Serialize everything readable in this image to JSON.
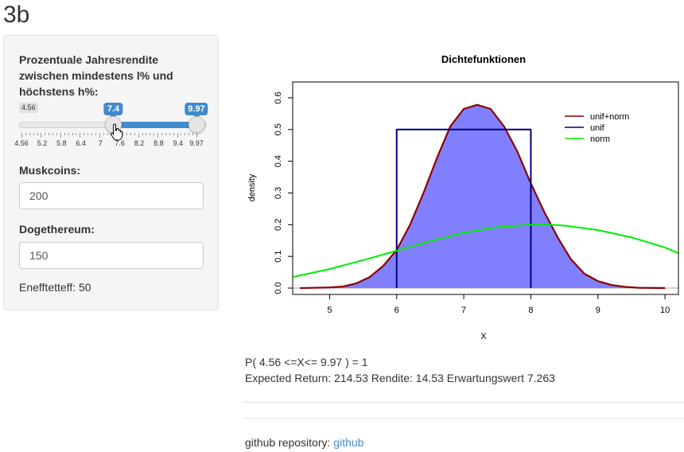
{
  "app": {
    "title": "3b"
  },
  "sidebar": {
    "slider": {
      "label": "Prozentuale Jahresrendite zwischen mindestens l% und höchstens h%:",
      "min": 4.56,
      "max": 9.97,
      "from": 7.4,
      "to": 9.97,
      "min_label": "4.56",
      "from_label": "7.4",
      "to_label": "9.97",
      "ticks": [
        "4.56",
        "5.2",
        "5.8",
        "6.4",
        "7",
        "7.6",
        "8.2",
        "8.8",
        "9.4",
        "9.97"
      ],
      "cursor": "hand-pointer-icon"
    },
    "muskcoins": {
      "label": "Muskcoins:",
      "value": "200"
    },
    "dogethereum": {
      "label": "Dogethereum:",
      "value": "150"
    },
    "output": "Enefftetteff: 50"
  },
  "main": {
    "probability": "P( 4.56 <=X<= 9.97 ) = 1",
    "expected": "Expected Return: 214.53 Rendite: 14.53 Erwartungswert 7.263",
    "github_prefix": "github repository:",
    "github_link": "github"
  },
  "chart_data": {
    "type": "line",
    "title": "Dichtefunktionen",
    "xlabel": "X",
    "ylabel": "density",
    "xlim": [
      4.45,
      10.2
    ],
    "ylim": [
      -0.02,
      0.65
    ],
    "xticks": [
      5,
      6,
      7,
      8,
      9,
      10
    ],
    "yticks": [
      0.0,
      0.1,
      0.2,
      0.3,
      0.4,
      0.5,
      0.6
    ],
    "legend": {
      "position": "top-right",
      "entries": [
        "unif+norm",
        "unif",
        "norm"
      ]
    },
    "series": [
      {
        "name": "unif+norm",
        "color": "#8b0000",
        "fill": "#8080ff",
        "x": [
          4.56,
          5.0,
          5.2,
          5.4,
          5.6,
          5.8,
          6.0,
          6.2,
          6.4,
          6.6,
          6.8,
          7.0,
          7.2,
          7.4,
          7.6,
          7.8,
          8.0,
          8.2,
          8.4,
          8.6,
          8.8,
          9.0,
          9.2,
          9.4,
          9.6,
          10.0
        ],
        "y": [
          0.0,
          0.002,
          0.005,
          0.015,
          0.035,
          0.07,
          0.12,
          0.2,
          0.3,
          0.41,
          0.51,
          0.565,
          0.578,
          0.565,
          0.51,
          0.43,
          0.33,
          0.24,
          0.16,
          0.09,
          0.045,
          0.022,
          0.01,
          0.004,
          0.001,
          0.0
        ]
      },
      {
        "name": "unif",
        "color": "#000080",
        "x": [
          6,
          6,
          8,
          8
        ],
        "y": [
          0,
          0.5,
          0.5,
          0
        ]
      },
      {
        "name": "norm",
        "color": "#00ee00",
        "x": [
          4.45,
          5.0,
          5.5,
          6.0,
          6.5,
          7.0,
          7.5,
          8.0,
          8.3,
          8.5,
          9.0,
          9.5,
          10.0,
          10.2
        ],
        "y": [
          0.035,
          0.06,
          0.088,
          0.118,
          0.148,
          0.175,
          0.192,
          0.2,
          0.2,
          0.197,
          0.183,
          0.16,
          0.128,
          0.11
        ]
      }
    ]
  }
}
